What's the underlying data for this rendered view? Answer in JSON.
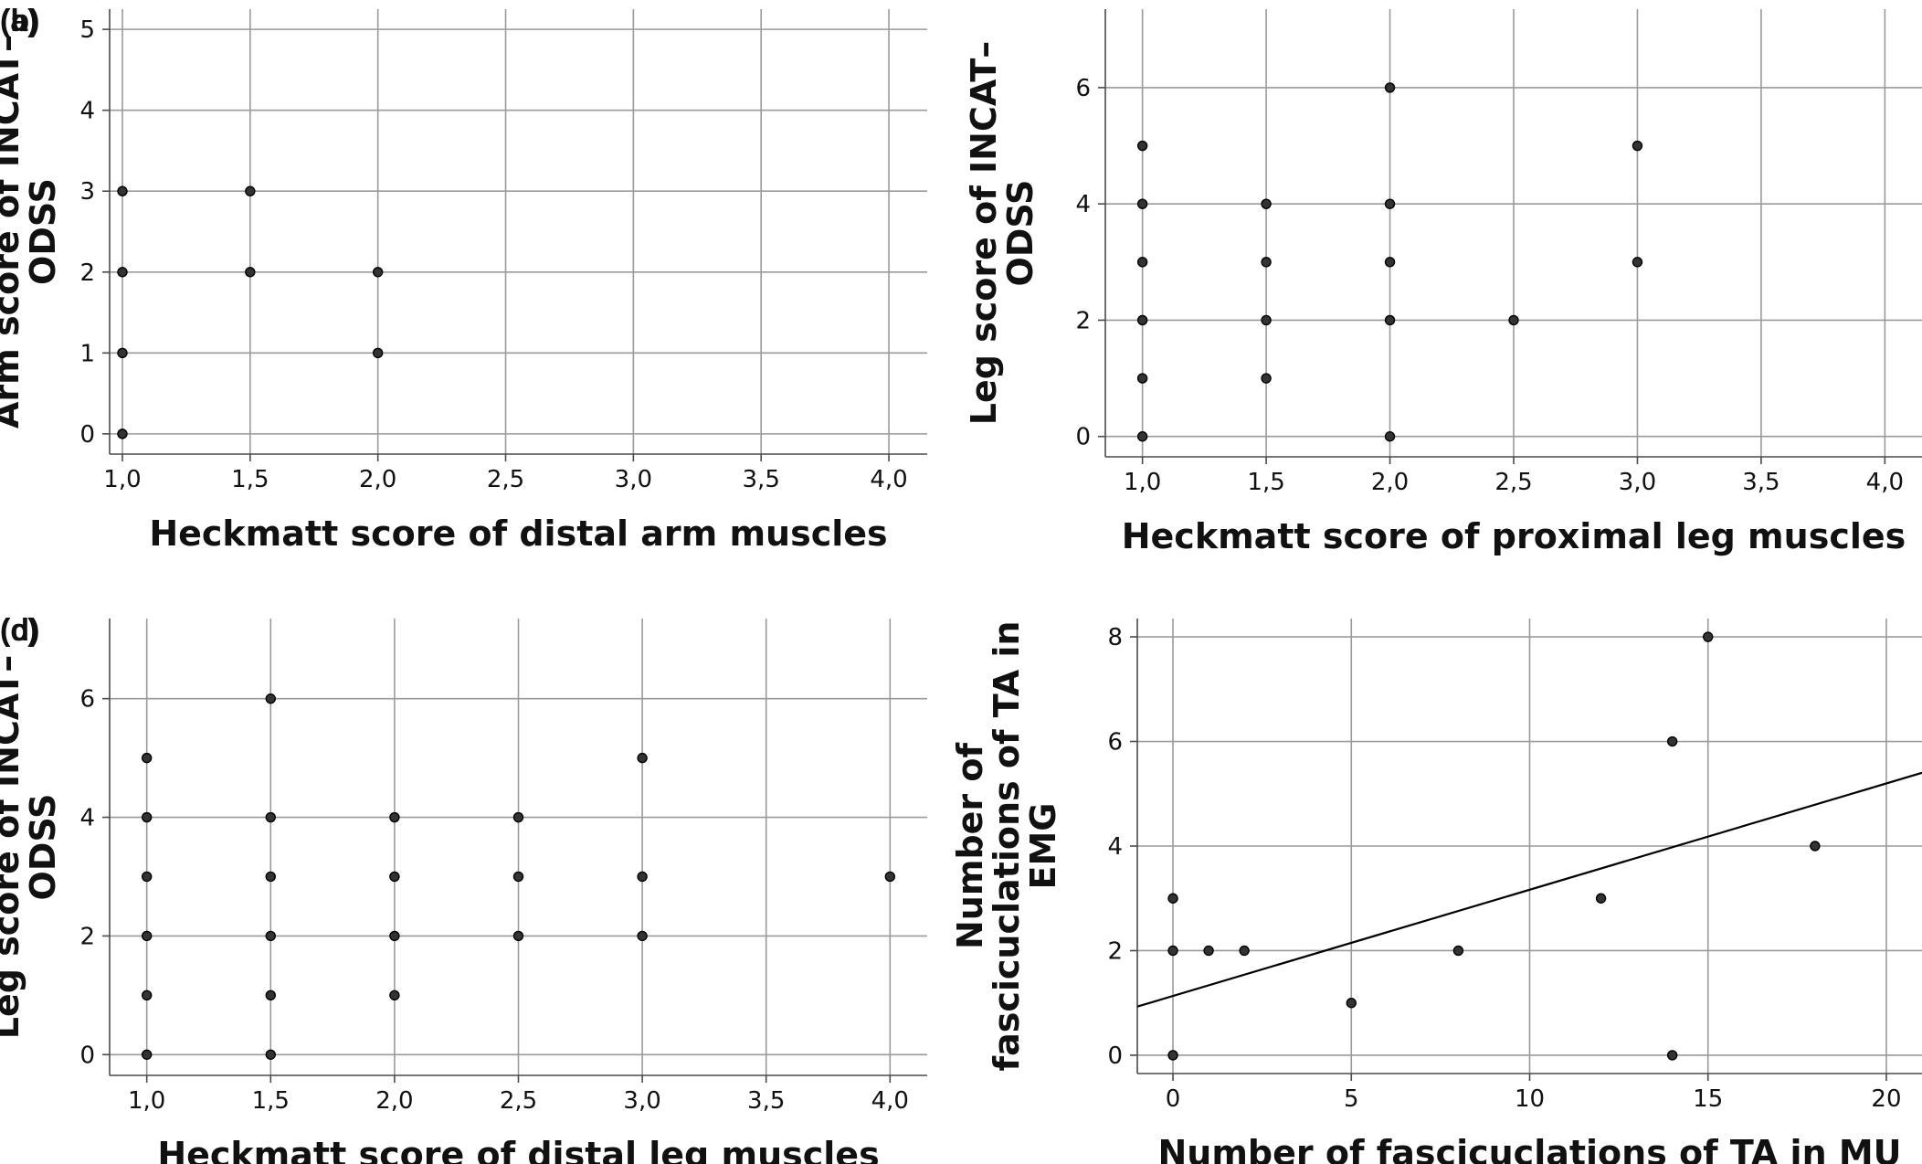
{
  "chart_data": [
    {
      "panel": "(a)",
      "type": "scatter",
      "xlabel": "Heckmatt score of distal arm muscles",
      "ylabel": [
        "Arm score of INCAT–",
        "ODSS"
      ],
      "xlim": [
        0.95,
        4.15
      ],
      "ylim": [
        -0.25,
        5.25
      ],
      "xticks": [
        1.0,
        1.5,
        2.0,
        2.5,
        3.0,
        3.5,
        4.0
      ],
      "xtick_labels": [
        "1,0",
        "1,5",
        "2,0",
        "2,5",
        "3,0",
        "3,5",
        "4,0"
      ],
      "yticks": [
        0,
        1,
        2,
        3,
        4,
        5
      ],
      "ytick_labels": [
        "0",
        "1",
        "2",
        "3",
        "4",
        "5"
      ],
      "grid": true,
      "points": [
        [
          1.0,
          3
        ],
        [
          1.0,
          2
        ],
        [
          1.0,
          1
        ],
        [
          1.0,
          0
        ],
        [
          1.5,
          3
        ],
        [
          1.5,
          2
        ],
        [
          2.0,
          2
        ],
        [
          2.0,
          1
        ]
      ]
    },
    {
      "panel": "(b)",
      "type": "scatter",
      "xlabel": "Heckmatt score of proximal leg muscles",
      "ylabel": [
        "Leg score of INCAT–",
        "ODSS"
      ],
      "xlim": [
        0.85,
        4.15
      ],
      "ylim": [
        -0.35,
        7.35
      ],
      "xticks": [
        1.0,
        1.5,
        2.0,
        2.5,
        3.0,
        3.5,
        4.0
      ],
      "xtick_labels": [
        "1,0",
        "1,5",
        "2,0",
        "2,5",
        "3,0",
        "3,5",
        "4,0"
      ],
      "yticks": [
        0,
        2,
        4,
        6
      ],
      "ytick_labels": [
        "0",
        "2",
        "4",
        "6"
      ],
      "grid": true,
      "points": [
        [
          1.0,
          5
        ],
        [
          1.0,
          4
        ],
        [
          1.0,
          3
        ],
        [
          1.0,
          2
        ],
        [
          1.0,
          1
        ],
        [
          1.0,
          0
        ],
        [
          1.5,
          4
        ],
        [
          1.5,
          3
        ],
        [
          1.5,
          2
        ],
        [
          1.5,
          1
        ],
        [
          2.0,
          6
        ],
        [
          2.0,
          4
        ],
        [
          2.0,
          3
        ],
        [
          2.0,
          2
        ],
        [
          2.0,
          0
        ],
        [
          2.5,
          2
        ],
        [
          3.0,
          5
        ],
        [
          3.0,
          3
        ]
      ]
    },
    {
      "panel": "(c)",
      "type": "scatter",
      "xlabel": "Heckmatt score of distal leg muscles",
      "ylabel": [
        "Leg score of INCAT–",
        "ODSS"
      ],
      "xlim": [
        0.85,
        4.15
      ],
      "ylim": [
        -0.35,
        7.35
      ],
      "xticks": [
        1.0,
        1.5,
        2.0,
        2.5,
        3.0,
        3.5,
        4.0
      ],
      "xtick_labels": [
        "1,0",
        "1,5",
        "2,0",
        "2,5",
        "3,0",
        "3,5",
        "4,0"
      ],
      "yticks": [
        0,
        2,
        4,
        6
      ],
      "ytick_labels": [
        "0",
        "2",
        "4",
        "6"
      ],
      "grid": true,
      "points": [
        [
          1.0,
          5
        ],
        [
          1.0,
          4
        ],
        [
          1.0,
          3
        ],
        [
          1.0,
          2
        ],
        [
          1.0,
          1
        ],
        [
          1.0,
          0
        ],
        [
          1.5,
          6
        ],
        [
          1.5,
          4
        ],
        [
          1.5,
          3
        ],
        [
          1.5,
          2
        ],
        [
          1.5,
          1
        ],
        [
          1.5,
          0
        ],
        [
          2.0,
          4
        ],
        [
          2.0,
          3
        ],
        [
          2.0,
          2
        ],
        [
          2.0,
          1
        ],
        [
          2.5,
          4
        ],
        [
          2.5,
          3
        ],
        [
          2.5,
          2
        ],
        [
          3.0,
          5
        ],
        [
          3.0,
          3
        ],
        [
          3.0,
          2
        ],
        [
          4.0,
          3
        ]
      ]
    },
    {
      "panel": "(d)",
      "type": "scatter",
      "xlabel": "Number of fascicuclations of TA in MU",
      "ylabel": [
        "Number of",
        "fascicuclations of TA in",
        "EMG"
      ],
      "xlim": [
        -1.0,
        21.0
      ],
      "ylim": [
        -0.35,
        8.35
      ],
      "xticks": [
        0,
        5,
        10,
        15,
        20
      ],
      "xtick_labels": [
        "0",
        "5",
        "10",
        "15",
        "20"
      ],
      "yticks": [
        0,
        2,
        4,
        6,
        8
      ],
      "ytick_labels": [
        "0",
        "2",
        "4",
        "6",
        "8"
      ],
      "grid": true,
      "points": [
        [
          0,
          3
        ],
        [
          0,
          2
        ],
        [
          0,
          0
        ],
        [
          1,
          2
        ],
        [
          2,
          2
        ],
        [
          5,
          1
        ],
        [
          8,
          2
        ],
        [
          12,
          3
        ],
        [
          14,
          6
        ],
        [
          14,
          0
        ],
        [
          15,
          8
        ],
        [
          18,
          4
        ]
      ],
      "fit_line": {
        "x": [
          -1.0,
          21.0
        ],
        "y": [
          0.93,
          5.4
        ]
      }
    }
  ]
}
